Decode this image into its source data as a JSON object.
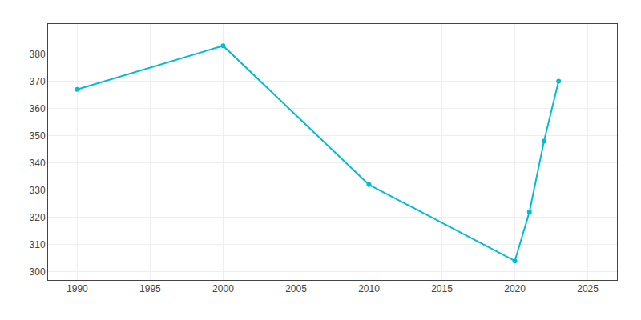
{
  "chart_data": {
    "type": "line",
    "x": [
      1990,
      2000,
      2010,
      2020,
      2021,
      2022,
      2023
    ],
    "values": [
      367,
      383,
      332,
      304,
      322,
      348,
      370
    ],
    "color": "#00bcd4",
    "marker": "circle",
    "xlim": [
      1988,
      2027
    ],
    "ylim": [
      297,
      391
    ],
    "xticks": [
      1990,
      1995,
      2000,
      2005,
      2010,
      2015,
      2020,
      2025
    ],
    "yticks": [
      300,
      310,
      320,
      330,
      340,
      350,
      360,
      370,
      380
    ],
    "grid": true
  }
}
